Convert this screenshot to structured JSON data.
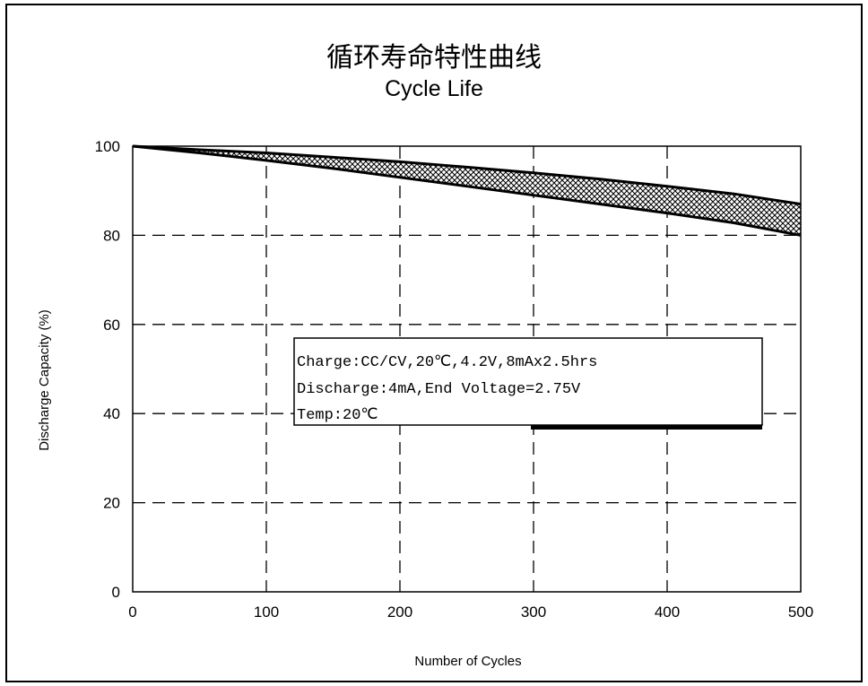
{
  "chart_data": {
    "type": "area",
    "title": "循环寿命特性曲线",
    "subtitle": "Cycle Life",
    "xlabel": "Number of Cycles",
    "ylabel": "Discharge Capacity (%)",
    "xlim": [
      0,
      500
    ],
    "ylim": [
      0,
      100
    ],
    "x_ticks": [
      "0",
      "100",
      "200",
      "300",
      "400",
      "500"
    ],
    "y_ticks": [
      "0",
      "20",
      "40",
      "60",
      "80",
      "100"
    ],
    "grid": true,
    "series": [
      {
        "x": [
          0,
          50,
          100,
          150,
          200,
          250,
          300,
          350,
          400,
          450,
          500
        ],
        "values": [
          100,
          99.2,
          98.5,
          97.5,
          96.5,
          95.3,
          94,
          92.6,
          91,
          89.3,
          87
        ]
      },
      {
        "x": [
          0,
          50,
          100,
          150,
          200,
          250,
          300,
          350,
          400,
          450,
          500
        ],
        "values": [
          100,
          98.5,
          96.8,
          95,
          93,
          91,
          89,
          87,
          85,
          82.8,
          80
        ]
      }
    ],
    "band_between_series": true,
    "annotation": [
      "Charge:CC/CV,20℃,4.2V,8mAx2.5hrs",
      "Discharge:4mA,End Voltage=2.75V",
      "Temp:20℃"
    ]
  }
}
